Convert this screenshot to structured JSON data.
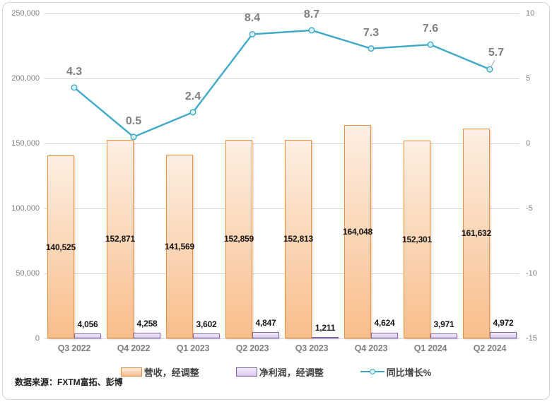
{
  "chart_data": {
    "type": "bar+line combo",
    "categories": [
      "Q3 2022",
      "Q4 2022",
      "Q1 2023",
      "Q2 2023",
      "Q3 2023",
      "Q4 2023",
      "Q1 2024",
      "Q2 2024"
    ],
    "series": [
      {
        "name": "营收，经调整",
        "type": "bar",
        "axis": "left",
        "values": [
          140525,
          152871,
          141569,
          152859,
          152813,
          164048,
          152301,
          161632
        ],
        "labels": [
          "140,525",
          "152,871",
          "141,569",
          "152,859",
          "152,813",
          "164,048",
          "152,301",
          "161,632"
        ]
      },
      {
        "name": "净利润，经调整",
        "type": "bar",
        "axis": "left",
        "values": [
          4056,
          4258,
          3602,
          4847,
          1211,
          4624,
          3971,
          4972
        ],
        "labels": [
          "4,056",
          "4,258",
          "3,602",
          "4,847",
          "1,211",
          "4,624",
          "3,971",
          "4,972"
        ]
      },
      {
        "name": "同比增长%",
        "type": "line",
        "axis": "right",
        "values": [
          4.3,
          0.5,
          2.4,
          8.4,
          8.7,
          7.3,
          7.6,
          5.7
        ],
        "labels": [
          "4.3",
          "0.5",
          "2.4",
          "8.4",
          "8.7",
          "7.3",
          "7.6",
          "5.7"
        ]
      }
    ],
    "left_axis": {
      "min": 0,
      "max": 250000,
      "ticks": [
        "250,000",
        "200,000",
        "150,000",
        "100,000",
        "50,000",
        "0"
      ]
    },
    "right_axis": {
      "min": -15,
      "max": 10,
      "ticks": [
        "10",
        "5",
        "0",
        "-5",
        "-10",
        "-15"
      ]
    },
    "grid": true,
    "legend_position": "bottom"
  },
  "source_note": "数据来源：FXTM富拓、彭博",
  "colors": {
    "orange_border": "#E8913F",
    "orange_top": "#FDEFE3",
    "orange_bottom": "#F9BE8B",
    "purple_border": "#8565A9",
    "purple_top": "#F1EBF7",
    "purple_bottom": "#D9C9EA",
    "line": "#3FA9C8",
    "marker_fill": "#D9F1F8",
    "label_gray": "#7F7F7F",
    "grid": "#D9D9D9"
  }
}
